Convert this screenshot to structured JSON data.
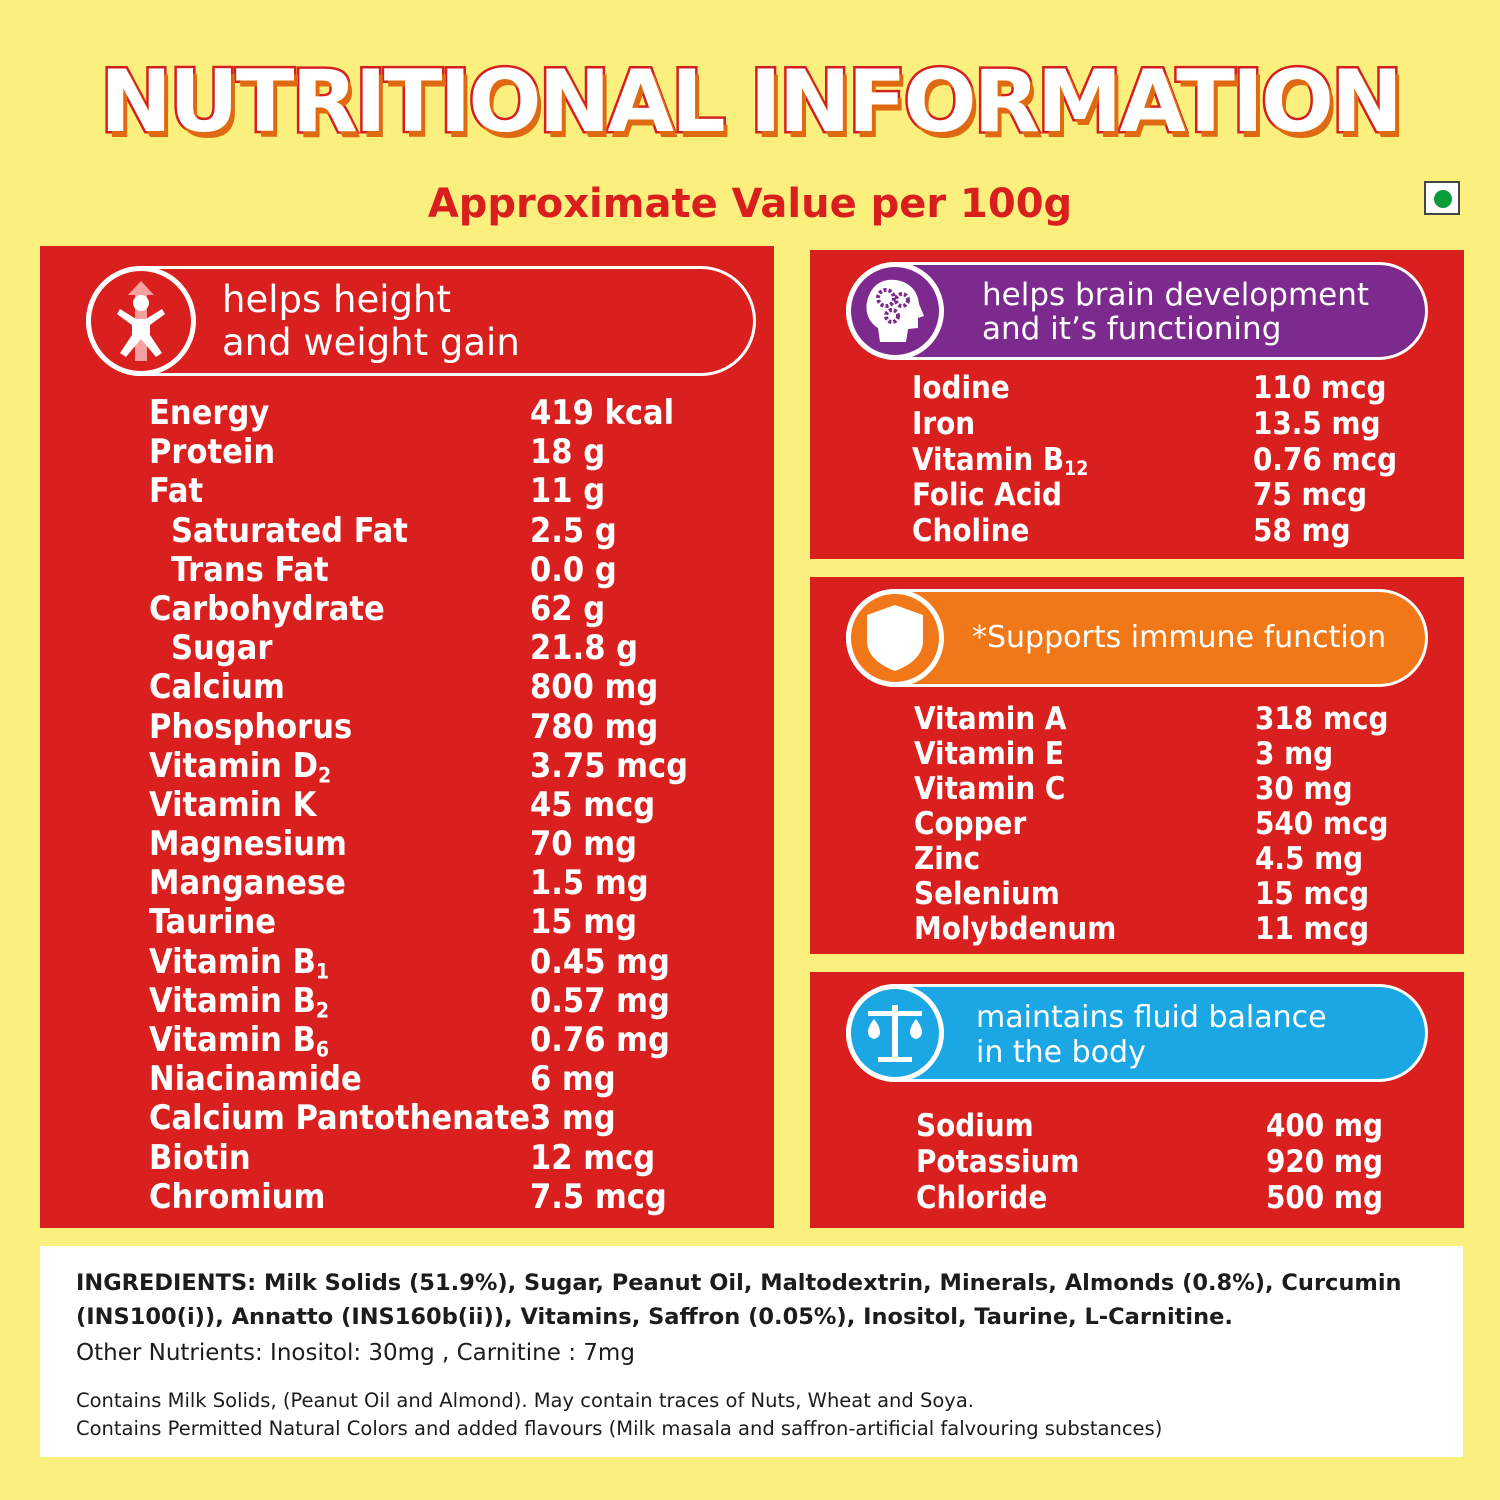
{
  "title": "NUTRITIONAL INFORMATION",
  "subtitle": "Approximate Value per 100g",
  "colors": {
    "background": "#fbef7e",
    "panel_red": "#da1f1f",
    "brain_purple": "#7d2a8f",
    "immune_orange": "#f07818",
    "fluid_blue": "#1aa7e4",
    "veg_green": "#0a9a37"
  },
  "icons": {
    "growth": "child-growth-icon",
    "brain": "brain-gears-icon",
    "immune": "shield-icon",
    "fluid": "balance-scale-icon",
    "veg": "veg-mark-icon"
  },
  "growth": {
    "label_line1": "helps height",
    "label_line2": "and weight gain",
    "rows": [
      {
        "name": "Energy",
        "value": "419 kcal"
      },
      {
        "name": "Protein",
        "value": "18 g"
      },
      {
        "name": "Fat",
        "value": "11 g"
      },
      {
        "name": "Saturated Fat",
        "value": "2.5 g",
        "indent": true
      },
      {
        "name": "Trans Fat",
        "value": "0.0 g",
        "indent": true
      },
      {
        "name": "Carbohydrate",
        "value": "62 g"
      },
      {
        "name": "Sugar",
        "value": "21.8 g",
        "indent": true
      },
      {
        "name": "Calcium",
        "value": "800 mg"
      },
      {
        "name": "Phosphorus",
        "value": "780 mg"
      },
      {
        "name": "Vitamin D",
        "sub": "2",
        "value": "3.75 mcg"
      },
      {
        "name": "Vitamin K",
        "value": "45 mcg"
      },
      {
        "name": "Magnesium",
        "value": "70 mg"
      },
      {
        "name": "Manganese",
        "value": "1.5 mg"
      },
      {
        "name": "Taurine",
        "value": "15 mg"
      },
      {
        "name": "Vitamin B",
        "sub": "1",
        "value": "0.45 mg"
      },
      {
        "name": "Vitamin B",
        "sub": "2",
        "value": "0.57 mg"
      },
      {
        "name": "Vitamin B",
        "sub": "6",
        "value": "0.76 mg"
      },
      {
        "name": "Niacinamide",
        "value": "6 mg"
      },
      {
        "name": "Calcium Pantothenate",
        "value": "3 mg"
      },
      {
        "name": "Biotin",
        "value": "12 mcg"
      },
      {
        "name": "Chromium",
        "value": "7.5 mcg"
      }
    ]
  },
  "brain": {
    "label_line1": "helps brain development",
    "label_line2": "and it’s functioning",
    "rows": [
      {
        "name": "Iodine",
        "value": "110 mcg"
      },
      {
        "name": "Iron",
        "value": "13.5 mg"
      },
      {
        "name": "Vitamin B",
        "sub": "12",
        "value": "0.76 mcg"
      },
      {
        "name": "Folic Acid",
        "value": "75 mcg"
      },
      {
        "name": "Choline",
        "value": "58 mg"
      }
    ]
  },
  "immune": {
    "label_line1": "*Supports immune function",
    "rows": [
      {
        "name": "Vitamin A",
        "value": "318 mcg"
      },
      {
        "name": "Vitamin E",
        "value": "3 mg"
      },
      {
        "name": "Vitamin C",
        "value": "30 mg"
      },
      {
        "name": "Copper",
        "value": "540 mcg"
      },
      {
        "name": "Zinc",
        "value": "4.5 mg"
      },
      {
        "name": "Selenium",
        "value": "15 mcg"
      },
      {
        "name": "Molybdenum",
        "value": "11 mcg"
      }
    ]
  },
  "fluid": {
    "label_line1": "maintains fluid balance",
    "label_line2": "in the body",
    "rows": [
      {
        "name": "Sodium",
        "value": "400 mg"
      },
      {
        "name": "Potassium",
        "value": "920 mg"
      },
      {
        "name": "Chloride",
        "value": "500 mg"
      }
    ]
  },
  "ingredients": {
    "line1": "INGREDIENTS: Milk Solids (51.9%), Sugar, Peanut Oil, Maltodextrin, Minerals, Almonds (0.8%), Curcumin",
    "line2": "(INS100(i)), Annatto (INS160b(ii)), Vitamins, Saffron (0.05%), Inositol, Taurine, L-Carnitine.",
    "other_nutrients": "Other Nutrients: Inositol: 30mg , Carnitine  : 7mg",
    "allergen1": "Contains Milk Solids, (Peanut Oil and Almond). May contain traces of Nuts, Wheat and Soya.",
    "allergen2": "Contains Permitted Natural Colors and added flavours (Milk masala and saffron-artificial falvouring substances)"
  }
}
